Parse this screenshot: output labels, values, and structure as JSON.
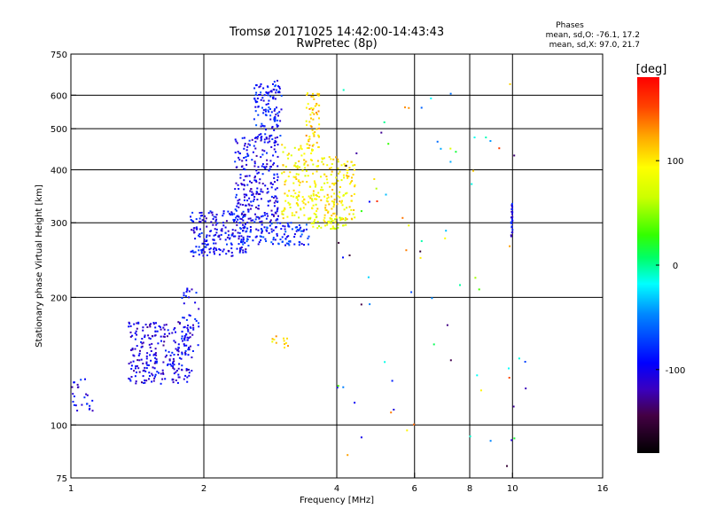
{
  "chart_data": {
    "type": "scatter",
    "title": "Tromsø 20171025 14:42:00-14:43:43",
    "subtitle": "RwPretec (8p)",
    "xlabel": "Frequency [MHz]",
    "ylabel": "Stationary phase Virtual Height [km]",
    "xscale": "log",
    "yscale": "log",
    "xlim": [
      1,
      16
    ],
    "ylim": [
      75,
      750
    ],
    "xticks": [
      1,
      2,
      4,
      6,
      8,
      10,
      16
    ],
    "yticks": [
      75,
      100,
      200,
      300,
      400,
      500,
      600,
      750
    ],
    "x_gridlines": [
      2,
      4,
      6,
      8,
      10
    ],
    "y_gridlines": [
      100,
      200,
      300,
      400,
      500,
      600
    ],
    "grid": true,
    "stats": {
      "heading": "Phases",
      "o_line": "mean, sd,O: -76.1, 17.2",
      "x_line": "mean, sd,X:  97.0, 21.7"
    },
    "colorbar": {
      "label": "[deg]",
      "range": [
        -180,
        180
      ],
      "ticks": [
        100,
        0,
        -100
      ],
      "tick_labels": [
        "100",
        "0",
        "-100"
      ]
    },
    "clusters": [
      {
        "x": [
          1.0,
          1.12
        ],
        "y": [
          108,
          130
        ],
        "phase": -100,
        "n": 25
      },
      {
        "x": [
          1.35,
          1.88
        ],
        "y": [
          125,
          175
        ],
        "phase": -105,
        "n": 250
      },
      {
        "x": [
          1.78,
          1.95
        ],
        "y": [
          145,
          210
        ],
        "phase": -95,
        "n": 45
      },
      {
        "x": [
          1.85,
          2.5
        ],
        "y": [
          250,
          320
        ],
        "phase": -100,
        "n": 200
      },
      {
        "x": [
          2.35,
          2.95
        ],
        "y": [
          300,
          480
        ],
        "phase": -100,
        "n": 250
      },
      {
        "x": [
          2.6,
          3.0
        ],
        "y": [
          470,
          650
        ],
        "phase": -90,
        "n": 120
      },
      {
        "x": [
          2.4,
          3.5
        ],
        "y": [
          265,
          300
        ],
        "phase": -85,
        "n": 120
      },
      {
        "x": [
          3.0,
          3.6
        ],
        "y": [
          305,
          460
        ],
        "phase": 95,
        "n": 140
      },
      {
        "x": [
          3.4,
          3.65
        ],
        "y": [
          450,
          610
        ],
        "phase": 110,
        "n": 60
      },
      {
        "x": [
          3.6,
          4.4
        ],
        "y": [
          300,
          430
        ],
        "phase": 100,
        "n": 140
      },
      {
        "x": [
          3.45,
          4.2
        ],
        "y": [
          290,
          310
        ],
        "phase": 80,
        "n": 40
      },
      {
        "x": [
          2.85,
          3.15
        ],
        "y": [
          150,
          162
        ],
        "phase": 110,
        "n": 12
      },
      {
        "x": [
          9.93,
          10.0
        ],
        "y": [
          278,
          335
        ],
        "phase": -100,
        "n": 25
      },
      {
        "x": [
          4.0,
          10.8
        ],
        "y": [
          80,
          660
        ],
        "phase": "mixed",
        "n": 80
      }
    ]
  }
}
